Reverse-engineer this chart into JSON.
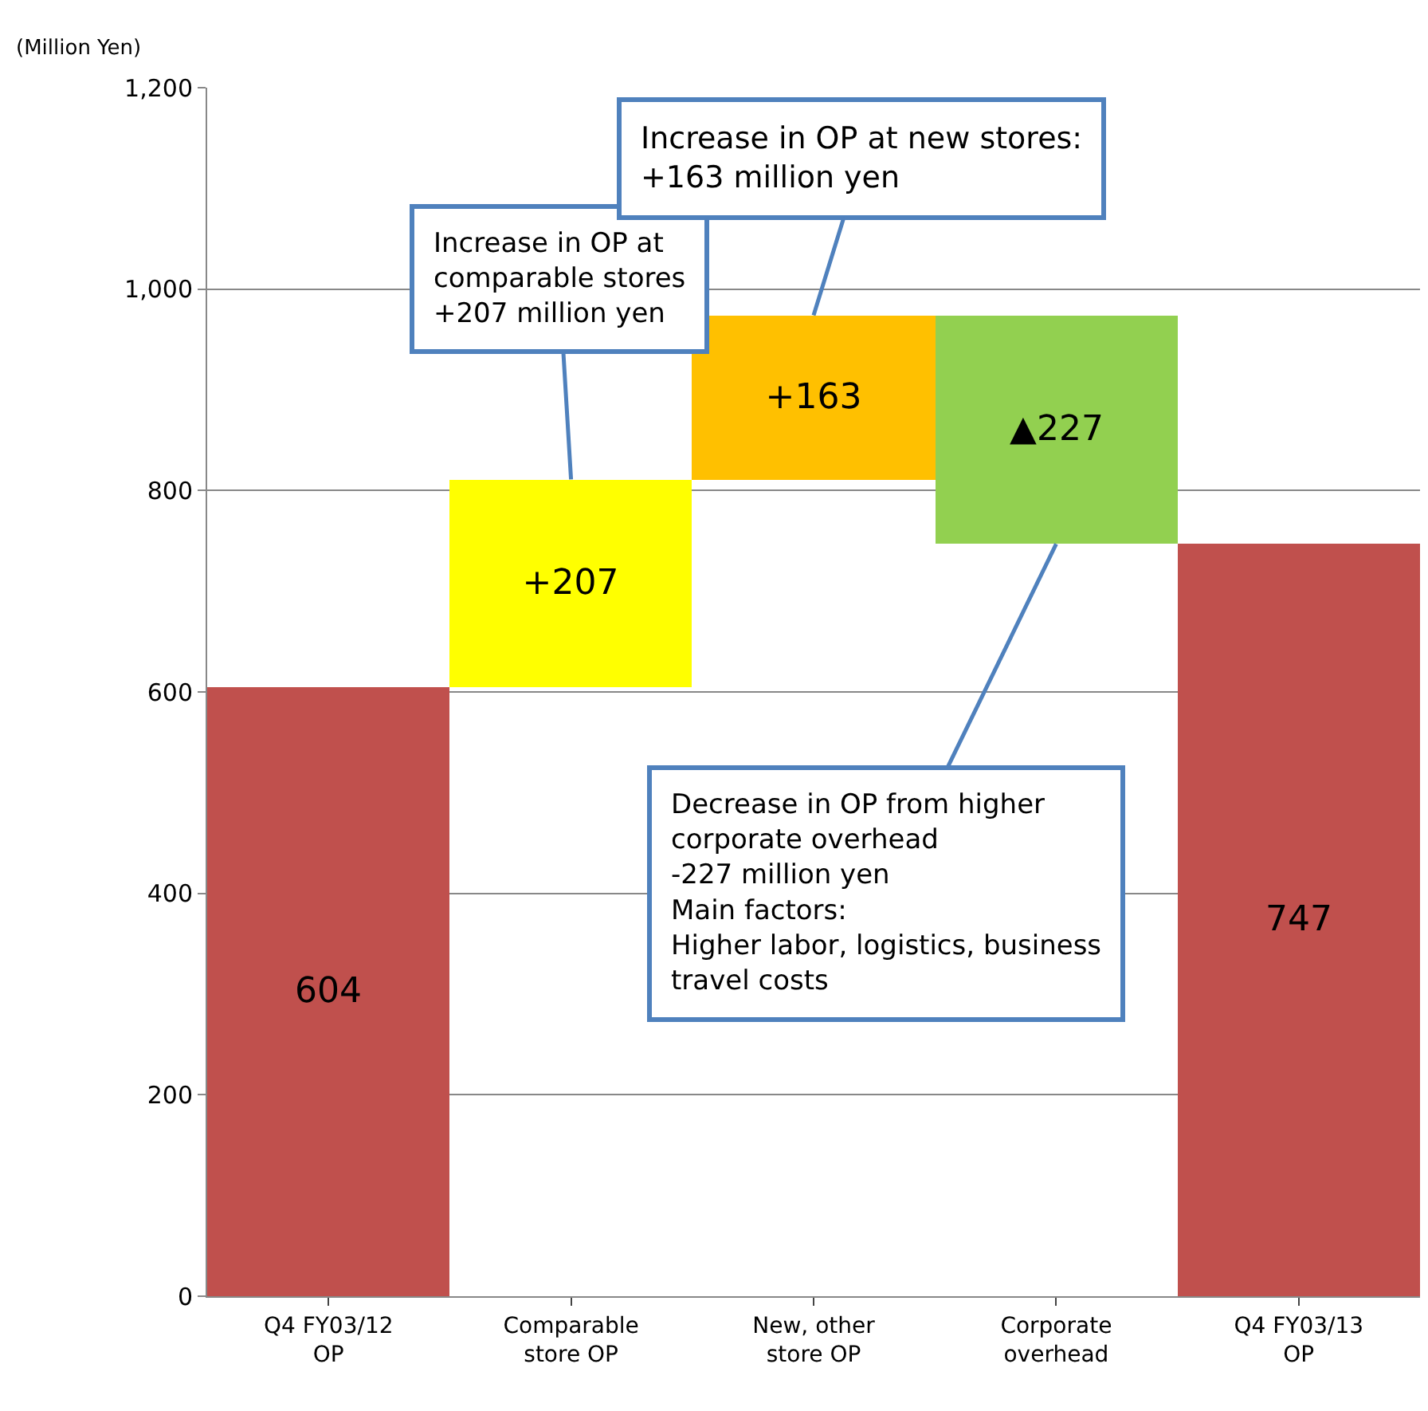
{
  "chart_data": {
    "type": "bar",
    "ylabel": "(Million Yen)",
    "categories": [
      "Q4 FY03/12\nOP",
      "Comparable\nstore OP",
      "New, other\nstore OP",
      "Corporate\noverhead",
      "Q4 FY03/13\nOP"
    ],
    "values": [
      604,
      207,
      163,
      -227,
      747
    ],
    "base": [
      0,
      604,
      811,
      974,
      0
    ],
    "colors": [
      "#c0504d",
      "#ffff00",
      "#ffc000",
      "#92d050",
      "#c0504d"
    ],
    "value_labels": [
      "604",
      "+207",
      "+163",
      "▲227",
      "747"
    ],
    "ylim": [
      0,
      1200
    ],
    "yticks": [
      0,
      200,
      400,
      600,
      800,
      {
        "value": 1000,
        "label": "1,000"
      },
      {
        "value": 1200,
        "label": "1,200"
      }
    ],
    "grid": "y",
    "legend": false,
    "annotations": [
      {
        "text": "Increase in OP at\ncomparable stores\n+207 million yen",
        "x": "Comparable\nstore OP",
        "y": 811
      },
      {
        "text": "Increase in OP at new stores:\n+163 million yen",
        "x": "New, other\nstore OP",
        "y": 974
      },
      {
        "text": "Decrease in OP from higher\ncorporate overhead\n-227 million yen\nMain factors:\nHigher labor, logistics, business\ntravel costs",
        "x": "Corporate\noverhead",
        "y": 747
      }
    ]
  }
}
